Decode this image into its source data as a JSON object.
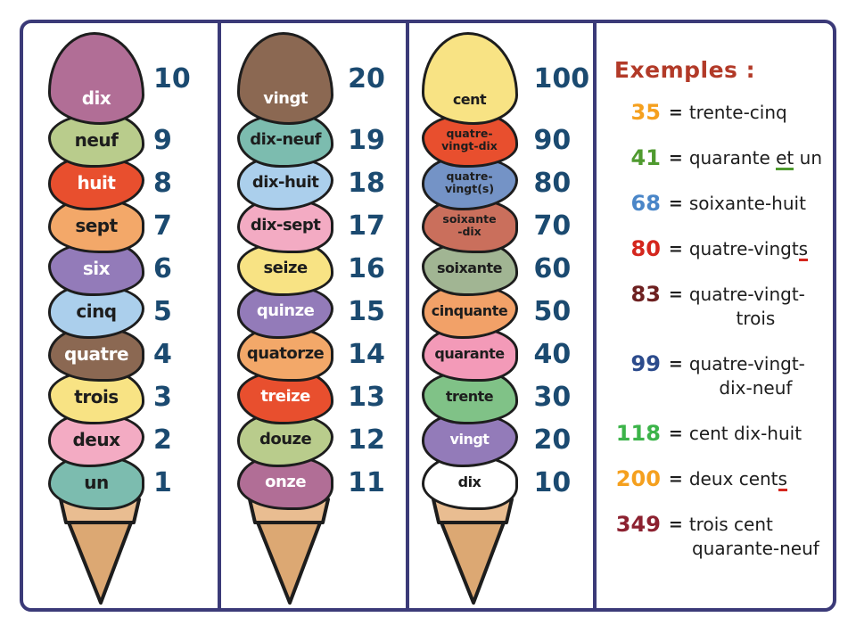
{
  "board": {
    "border_color": "#3b3a78"
  },
  "ink": "#1d1d1d",
  "numbers_color": "#1b4a70",
  "equals": "=",
  "cone": {
    "rim_color": "#e9bd91",
    "body_color": "#dca873",
    "outline": "#1d1d1d"
  },
  "columns": [
    {
      "name": "units-1-10",
      "scoops": [
        {
          "lines": [
            "dix"
          ],
          "value": "10",
          "color": "#b16e96",
          "text_color": "#ffffff"
        },
        {
          "lines": [
            "neuf"
          ],
          "value": "9",
          "color": "#b9cc8c",
          "text_color": "#1d1d1d"
        },
        {
          "lines": [
            "huit"
          ],
          "value": "8",
          "color": "#e84f2e",
          "text_color": "#ffffff"
        },
        {
          "lines": [
            "sept"
          ],
          "value": "7",
          "color": "#f3a869",
          "text_color": "#1d1d1d"
        },
        {
          "lines": [
            "six"
          ],
          "value": "6",
          "color": "#937bb9",
          "text_color": "#ffffff"
        },
        {
          "lines": [
            "cinq"
          ],
          "value": "5",
          "color": "#abcfec",
          "text_color": "#1d1d1d"
        },
        {
          "lines": [
            "quatre"
          ],
          "value": "4",
          "color": "#8b6852",
          "text_color": "#ffffff"
        },
        {
          "lines": [
            "trois"
          ],
          "value": "3",
          "color": "#f8e384",
          "text_color": "#1d1d1d"
        },
        {
          "lines": [
            "deux"
          ],
          "value": "2",
          "color": "#f3abc3",
          "text_color": "#1d1d1d"
        },
        {
          "lines": [
            "un"
          ],
          "value": "1",
          "color": "#7cbcaf",
          "text_color": "#1d1d1d"
        }
      ]
    },
    {
      "name": "teens-11-20",
      "scoops": [
        {
          "lines": [
            "vingt"
          ],
          "value": "20",
          "color": "#8b6852",
          "text_color": "#ffffff"
        },
        {
          "lines": [
            "dix-neuf"
          ],
          "value": "19",
          "color": "#7cbcaf",
          "text_color": "#1d1d1d"
        },
        {
          "lines": [
            "dix-huit"
          ],
          "value": "18",
          "color": "#abcfec",
          "text_color": "#1d1d1d"
        },
        {
          "lines": [
            "dix-sept"
          ],
          "value": "17",
          "color": "#f3abc3",
          "text_color": "#1d1d1d"
        },
        {
          "lines": [
            "seize"
          ],
          "value": "16",
          "color": "#f8e384",
          "text_color": "#1d1d1d"
        },
        {
          "lines": [
            "quinze"
          ],
          "value": "15",
          "color": "#937bb9",
          "text_color": "#ffffff"
        },
        {
          "lines": [
            "quatorze"
          ],
          "value": "14",
          "color": "#f3a869",
          "text_color": "#1d1d1d"
        },
        {
          "lines": [
            "treize"
          ],
          "value": "13",
          "color": "#e84f2e",
          "text_color": "#ffffff"
        },
        {
          "lines": [
            "douze"
          ],
          "value": "12",
          "color": "#b9cc8c",
          "text_color": "#1d1d1d"
        },
        {
          "lines": [
            "onze"
          ],
          "value": "11",
          "color": "#b16e96",
          "text_color": "#ffffff"
        }
      ]
    },
    {
      "name": "tens-10-100",
      "scoops": [
        {
          "lines": [
            "cent"
          ],
          "value": "100",
          "color": "#f8e384",
          "text_color": "#1d1d1d"
        },
        {
          "lines": [
            "quatre-",
            "vingt-dix"
          ],
          "value": "90",
          "color": "#e84f2e",
          "text_color": "#1d1d1d",
          "small": true
        },
        {
          "lines": [
            "quatre-",
            "vingt(s)"
          ],
          "value": "80",
          "color": "#7493c6",
          "text_color": "#1d1d1d",
          "small": true
        },
        {
          "lines": [
            "soixante",
            "-dix"
          ],
          "value": "70",
          "color": "#ca6f5c",
          "text_color": "#1d1d1d",
          "small": true
        },
        {
          "lines": [
            "soixante"
          ],
          "value": "60",
          "color": "#a1b593",
          "text_color": "#1d1d1d"
        },
        {
          "lines": [
            "cinquante"
          ],
          "value": "50",
          "color": "#f2a168",
          "text_color": "#1d1d1d"
        },
        {
          "lines": [
            "quarante"
          ],
          "value": "40",
          "color": "#f39ab8",
          "text_color": "#1d1d1d"
        },
        {
          "lines": [
            "trente"
          ],
          "value": "30",
          "color": "#80c287",
          "text_color": "#1d1d1d"
        },
        {
          "lines": [
            "vingt"
          ],
          "value": "20",
          "color": "#937bb9",
          "text_color": "#ffffff"
        },
        {
          "lines": [
            "dix"
          ],
          "value": "10",
          "color": "#ffffff",
          "text_color": "#1d1d1d"
        }
      ]
    }
  ],
  "examples": {
    "heading": "Exemples :",
    "heading_color": "#b23a28",
    "items": [
      {
        "num": "35",
        "num_color": "#f5a01e",
        "line1": [
          {
            "t": "trente-cinq"
          }
        ]
      },
      {
        "num": "41",
        "num_color": "#4f9a2f",
        "line1": [
          {
            "t": "quarante "
          },
          {
            "t": "et",
            "u": "#4f9a2f"
          },
          {
            "t": " un"
          }
        ]
      },
      {
        "num": "68",
        "num_color": "#4a86c8",
        "line1": [
          {
            "t": "soixante-huit"
          }
        ]
      },
      {
        "num": "80",
        "num_color": "#d4261d",
        "line1": [
          {
            "t": "quatre-vingt"
          },
          {
            "t": "s",
            "u": "#d4261d"
          }
        ]
      },
      {
        "num": "83",
        "num_color": "#6d2020",
        "line1": [
          {
            "t": "quatre-vingt-"
          }
        ],
        "line2": "trois"
      },
      {
        "num": "99",
        "num_color": "#2c4b8c",
        "line1": [
          {
            "t": "quatre-vingt-"
          }
        ],
        "line2": "dix-neuf"
      },
      {
        "num": "118",
        "num_color": "#3cb44a",
        "line1": [
          {
            "t": "cent dix-huit"
          }
        ]
      },
      {
        "num": "200",
        "num_color": "#f5a01e",
        "line1": [
          {
            "t": "deux cent"
          },
          {
            "t": "s",
            "u": "#d4261d"
          }
        ]
      },
      {
        "num": "349",
        "num_color": "#8c2130",
        "line1": [
          {
            "t": "trois cent"
          }
        ],
        "line2": "quarante-neuf"
      }
    ]
  }
}
